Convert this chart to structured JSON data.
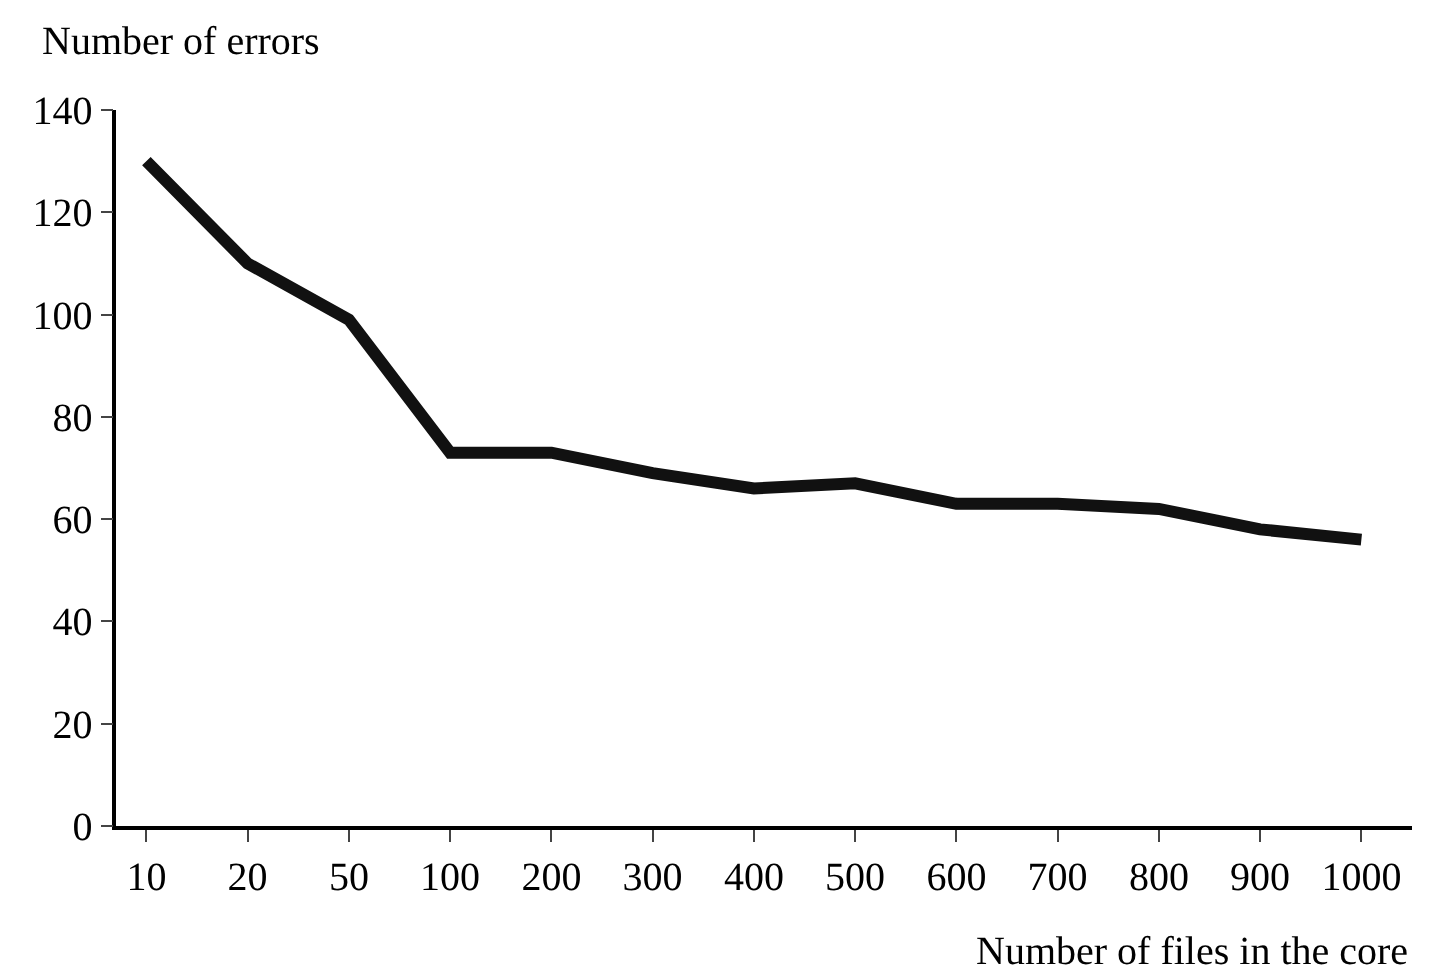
{
  "chart_data": {
    "type": "line",
    "xlabel": "Number of files in the core",
    "ylabel": "Number of errors",
    "categories": [
      "10",
      "20",
      "50",
      "100",
      "200",
      "300",
      "400",
      "500",
      "600",
      "700",
      "800",
      "900",
      "1000"
    ],
    "series": [
      {
        "color": "#111111",
        "values": [
          130,
          110,
          99,
          73,
          73,
          69,
          66,
          67,
          63,
          63,
          62,
          58,
          56
        ]
      }
    ],
    "ylim": [
      0,
      140
    ],
    "yticks": [
      0,
      20,
      40,
      60,
      80,
      100,
      120,
      140
    ],
    "marker": "none",
    "line_style": "solid"
  }
}
